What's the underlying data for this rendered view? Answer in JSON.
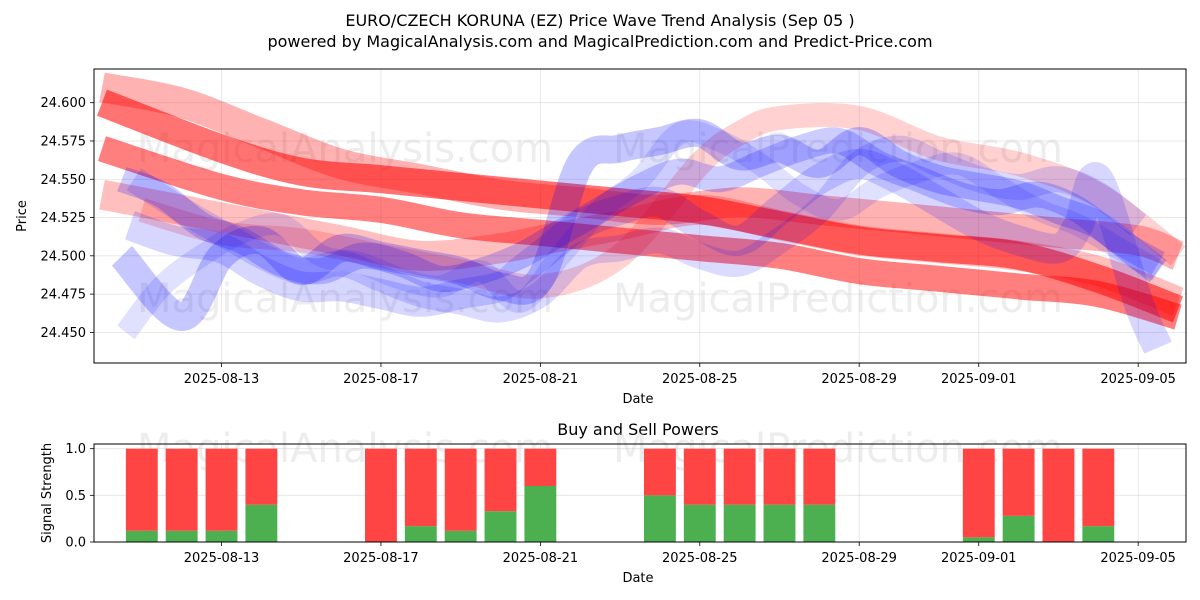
{
  "title_line1": "EURO/CZECH KORUNA (EZ) Price Wave Trend Analysis (Sep 05 )",
  "title_line2": "powered by MagicalAnalysis.com and MagicalPrediction.com and Predict-Price.com",
  "watermarks": [
    "MagicalAnalysis.com",
    "MagicalPrediction.com"
  ],
  "colors": {
    "red": "#ff0000",
    "blue": "#0000ff",
    "buy": "#4caf50",
    "sell": "#ff4444"
  },
  "chart_data": [
    {
      "type": "line",
      "name": "price-wave-chart",
      "xlabel": "Date",
      "ylabel": "Price",
      "xlim": [
        -3.2,
        24.2
      ],
      "ylim": [
        24.43,
        24.622
      ],
      "grid": true,
      "x_ticks": [
        {
          "pos": 0,
          "label": "2025-08-13"
        },
        {
          "pos": 4,
          "label": "2025-08-17"
        },
        {
          "pos": 8,
          "label": "2025-08-21"
        },
        {
          "pos": 12,
          "label": "2025-08-25"
        },
        {
          "pos": 16,
          "label": "2025-08-29"
        },
        {
          "pos": 19,
          "label": "2025-09-01"
        },
        {
          "pos": 23,
          "label": "2025-09-05"
        }
      ],
      "y_ticks": [
        {
          "value": 24.45,
          "label": "24.450"
        },
        {
          "value": 24.475,
          "label": "24.475"
        },
        {
          "value": 24.5,
          "label": "24.500"
        },
        {
          "value": 24.525,
          "label": "24.525"
        },
        {
          "value": 24.55,
          "label": "24.550"
        },
        {
          "value": 24.575,
          "label": "24.575"
        },
        {
          "value": 24.6,
          "label": "24.600"
        }
      ],
      "series": [
        {
          "name": "red-wave-1",
          "color": "red",
          "opacity": 0.55,
          "width": 28,
          "x": [
            -3,
            0,
            2,
            4,
            6,
            8,
            10,
            12,
            14,
            16,
            18,
            20,
            22,
            24
          ],
          "y": [
            24.6,
            24.57,
            24.555,
            24.55,
            24.545,
            24.54,
            24.535,
            24.53,
            24.52,
            24.51,
            24.505,
            24.5,
            24.485,
            24.465
          ]
        },
        {
          "name": "red-wave-2",
          "color": "red",
          "opacity": 0.5,
          "width": 26,
          "x": [
            -3,
            0,
            2,
            4,
            6,
            8,
            10,
            12,
            14,
            16,
            18,
            20,
            22,
            24
          ],
          "y": [
            24.57,
            24.545,
            24.535,
            24.53,
            24.52,
            24.515,
            24.51,
            24.505,
            24.5,
            24.49,
            24.485,
            24.48,
            24.475,
            24.46
          ]
        },
        {
          "name": "red-wave-3",
          "color": "red",
          "opacity": 0.3,
          "width": 30,
          "x": [
            -3,
            -1,
            1,
            3,
            5,
            7,
            9,
            11,
            13,
            15,
            17,
            19,
            21,
            23,
            24
          ],
          "y": [
            24.61,
            24.6,
            24.58,
            24.56,
            24.55,
            24.54,
            24.535,
            24.53,
            24.535,
            24.53,
            24.525,
            24.52,
            24.515,
            24.51,
            24.5
          ]
        },
        {
          "name": "red-wave-4",
          "color": "red",
          "opacity": 0.25,
          "width": 30,
          "x": [
            -3,
            -1,
            1,
            3,
            5,
            7,
            8,
            10,
            12,
            14,
            16,
            18,
            20,
            22,
            24
          ],
          "y": [
            24.54,
            24.53,
            24.52,
            24.51,
            24.5,
            24.505,
            24.51,
            24.52,
            24.53,
            24.52,
            24.51,
            24.505,
            24.5,
            24.49,
            24.47
          ]
        },
        {
          "name": "red-wave-5",
          "color": "red",
          "opacity": 0.18,
          "width": 24,
          "x": [
            -2,
            0,
            2,
            4,
            6,
            8,
            10,
            12,
            13,
            14,
            16,
            18,
            20,
            22,
            24
          ],
          "y": [
            24.53,
            24.515,
            24.51,
            24.5,
            24.49,
            24.48,
            24.5,
            24.56,
            24.58,
            24.59,
            24.59,
            24.57,
            24.56,
            24.54,
            24.5
          ]
        },
        {
          "name": "blue-wave-1",
          "color": "blue",
          "opacity": 0.22,
          "width": 28,
          "x": [
            -2.5,
            -1,
            0,
            1,
            2,
            3,
            4,
            5,
            6,
            7,
            8,
            9,
            10,
            11,
            12,
            13,
            14,
            15,
            16,
            17,
            18,
            19,
            20,
            21,
            22,
            23,
            23.5
          ],
          "y": [
            24.5,
            24.46,
            24.5,
            24.51,
            24.49,
            24.505,
            24.5,
            24.495,
            24.49,
            24.48,
            24.485,
            24.56,
            24.57,
            24.575,
            24.58,
            24.565,
            24.57,
            24.56,
            24.575,
            24.56,
            24.55,
            24.545,
            24.54,
            24.53,
            24.52,
            24.5,
            24.49
          ]
        },
        {
          "name": "blue-wave-2",
          "color": "blue",
          "opacity": 0.2,
          "width": 26,
          "x": [
            -2.5,
            -1.5,
            -0.5,
            0.5,
            1.5,
            2.5,
            3.5,
            4.5,
            5.5,
            6.5,
            7.5,
            8.5,
            9.5,
            10.5,
            11.5,
            12.5,
            13.5,
            14.5,
            15.5,
            16.5,
            17.5,
            18.5,
            19.5,
            20.5,
            21.5,
            22.5,
            23.5
          ],
          "y": [
            24.55,
            24.54,
            24.52,
            24.51,
            24.495,
            24.49,
            24.5,
            24.495,
            24.485,
            24.49,
            24.5,
            24.515,
            24.53,
            24.545,
            24.555,
            24.55,
            24.56,
            24.57,
            24.575,
            24.56,
            24.55,
            24.54,
            24.535,
            24.54,
            24.53,
            24.51,
            24.495
          ]
        },
        {
          "name": "blue-wave-3",
          "color": "blue",
          "opacity": 0.16,
          "width": 30,
          "x": [
            -2.3,
            -1.2,
            0,
            1,
            2,
            3,
            4,
            5,
            6,
            7,
            7.5,
            8,
            9,
            10,
            11,
            12,
            13,
            14,
            15,
            16,
            17,
            18,
            19,
            20,
            21,
            21.5,
            22,
            23,
            23.5
          ],
          "y": [
            24.52,
            24.51,
            24.505,
            24.49,
            24.48,
            24.48,
            24.475,
            24.47,
            24.475,
            24.48,
            24.49,
            24.5,
            24.52,
            24.53,
            24.535,
            24.52,
            24.51,
            24.53,
            24.55,
            24.56,
            24.55,
            24.535,
            24.52,
            24.51,
            24.505,
            24.52,
            24.55,
            24.47,
            24.44
          ]
        },
        {
          "name": "blue-wave-4",
          "color": "blue",
          "opacity": 0.14,
          "width": 26,
          "x": [
            -2.2,
            -1,
            0,
            1,
            2,
            3,
            4,
            5,
            6,
            7,
            8,
            9,
            10,
            11,
            12,
            13,
            14,
            15,
            16,
            17,
            18,
            19,
            20,
            21,
            22,
            23
          ],
          "y": [
            24.55,
            24.53,
            24.515,
            24.5,
            24.49,
            24.495,
            24.485,
            24.475,
            24.47,
            24.465,
            24.475,
            24.5,
            24.505,
            24.51,
            24.5,
            24.495,
            24.51,
            24.53,
            24.56,
            24.57,
            24.56,
            24.55,
            24.545,
            24.55,
            24.54,
            24.52
          ]
        },
        {
          "name": "blue-wave-5",
          "color": "blue",
          "opacity": 0.12,
          "width": 22,
          "x": [
            -2.4,
            -1.5,
            -0.5,
            0.5,
            1.5,
            2.5,
            3.5,
            4.5,
            5.5,
            6.5,
            7.5,
            8.5,
            9.5,
            10.5,
            11.5,
            12.5,
            13.5,
            14.5,
            15.5,
            16.5,
            17.5,
            18.5,
            19.5,
            20.5,
            21.5,
            22.5,
            23.5
          ],
          "y": [
            24.45,
            24.48,
            24.5,
            24.515,
            24.52,
            24.5,
            24.495,
            24.485,
            24.48,
            24.49,
            24.47,
            24.5,
            24.53,
            24.55,
            24.58,
            24.575,
            24.56,
            24.54,
            24.53,
            24.545,
            24.555,
            24.56,
            24.545,
            24.53,
            24.52,
            24.505,
            24.49
          ]
        }
      ]
    },
    {
      "type": "bar",
      "name": "buy-sell-chart",
      "title": "Buy and Sell Powers",
      "xlabel": "Date",
      "ylabel": "Signal Strength",
      "xlim": [
        -3.2,
        24.2
      ],
      "ylim": [
        0,
        1.05
      ],
      "grid": true,
      "x_ticks": [
        {
          "pos": 0,
          "label": "2025-08-13"
        },
        {
          "pos": 4,
          "label": "2025-08-17"
        },
        {
          "pos": 8,
          "label": "2025-08-21"
        },
        {
          "pos": 12,
          "label": "2025-08-25"
        },
        {
          "pos": 16,
          "label": "2025-08-29"
        },
        {
          "pos": 19,
          "label": "2025-09-01"
        },
        {
          "pos": 23,
          "label": "2025-09-05"
        }
      ],
      "y_ticks": [
        {
          "value": 0,
          "label": "0.0"
        },
        {
          "value": 0.5,
          "label": "0.5"
        },
        {
          "value": 1,
          "label": "1.0"
        }
      ],
      "series": [
        {
          "name": "Buy",
          "color": "buy",
          "x": [
            -2,
            -1,
            0,
            1,
            4,
            5,
            6,
            7,
            8,
            11,
            12,
            13,
            14,
            15,
            19,
            20,
            21,
            22
          ],
          "values": [
            0.12,
            0.12,
            0.12,
            0.4,
            0.0,
            0.17,
            0.12,
            0.33,
            0.6,
            0.5,
            0.4,
            0.4,
            0.4,
            0.4,
            0.05,
            0.28,
            0.0,
            0.17
          ]
        },
        {
          "name": "Sell",
          "color": "sell",
          "x": [
            -2,
            -1,
            0,
            1,
            4,
            5,
            6,
            7,
            8,
            11,
            12,
            13,
            14,
            15,
            19,
            20,
            21,
            22
          ],
          "values": [
            0.88,
            0.88,
            0.88,
            0.6,
            1.0,
            0.83,
            0.88,
            0.67,
            0.4,
            0.5,
            0.6,
            0.6,
            0.6,
            0.6,
            0.95,
            0.72,
            1.0,
            0.83
          ]
        }
      ]
    }
  ]
}
